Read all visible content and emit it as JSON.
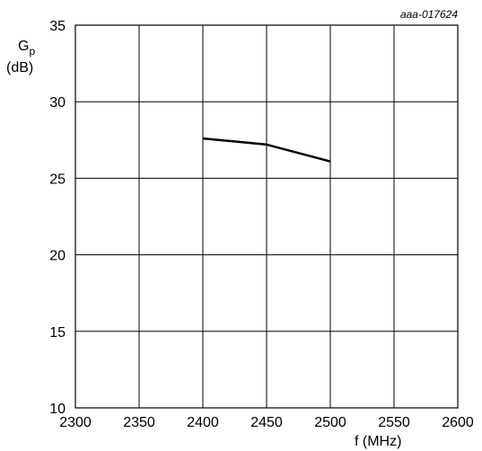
{
  "chart_data": {
    "type": "line",
    "figure_id": "aaa-017624",
    "title": "",
    "xlabel": "f (MHz)",
    "ylabel_main": "G",
    "ylabel_sub": "p",
    "ylabel_unit": "(dB)",
    "xlim": [
      2300,
      2600
    ],
    "ylim": [
      10,
      35
    ],
    "x_ticks": [
      2300,
      2350,
      2400,
      2450,
      2500,
      2550,
      2600
    ],
    "y_ticks": [
      10,
      15,
      20,
      25,
      30,
      35
    ],
    "grid": true,
    "series": [
      {
        "x": [
          2400,
          2450,
          2500
        ],
        "y": [
          27.6,
          27.2,
          26.1
        ]
      }
    ],
    "colors": {
      "line": "#000000",
      "grid": "#000000"
    }
  }
}
